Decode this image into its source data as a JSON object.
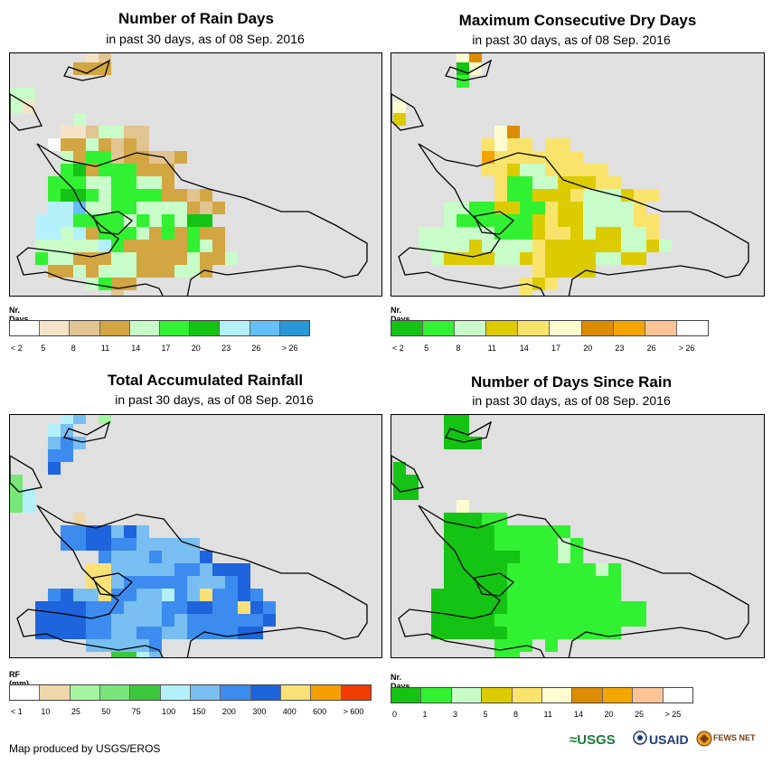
{
  "panels": [
    {
      "id": "rain-days",
      "title": "Number of Rain Days",
      "subtitle": "in past 30 days, as of 08 Sep. 2016",
      "legend_title": "Nr. Days",
      "legend_colors": [
        "#ffffff",
        "#f5e3c8",
        "#e2c493",
        "#d2a642",
        "#c8fcc8",
        "#32f032",
        "#14c314",
        "#b4f0fa",
        "#64befa",
        "#2896d2"
      ],
      "legend_labels": [
        "< 2",
        "5",
        "8",
        "11",
        "14",
        "17",
        "20",
        "23",
        "26",
        "> 26"
      ],
      "grid": [
        "......12......",
        ".....333......",
        "..............",
        "44............",
        "41............",
        ".....4........",
        "....1124422...",
        "...03343232...",
        "....4355233223",
        "....563555333.",
        "...5554455443...",
        "...5665455553323",
        "...77844554444323",
        "..77755554545466",
        "..774735554353533",
        "..444447533333543",
        "..5443334433334334",
        "...3343444333443",
        "......4533.......",
        "........2........",
        "........3........"
      ]
    },
    {
      "id": "max-dry-days",
      "title": "Maximum Consecutive Dry Days",
      "subtitle": "in past 30 days, as of 08 Sep. 2016",
      "legend_title": "Nr. Days",
      "legend_colors": [
        "#14c314",
        "#32f032",
        "#c8fcc8",
        "#dccb00",
        "#f9e36a",
        "#fffcd0",
        "#dc8c00",
        "#f5a500",
        "#fbc396",
        "#ffffff"
      ],
      "legend_labels": [
        "< 2",
        "5",
        "8",
        "11",
        "14",
        "17",
        "20",
        "23",
        "26",
        "> 26"
      ],
      "grid": [
        ".....56.......",
        ".....05.......",
        ".....1........",
        "...............",
        "5................",
        "3................",
        "........56.......",
        ".......4544.44...",
        ".......74444444....",
        ".......4432244444..",
        "........4112233344.",
        "........4113334222344",
        "....2211331143322224",
        "....21111113433222244",
        "..2222221113443233224",
        "..22223222243333332232",
        "...23333223433332233.",
        "...........43333......",
        "..........434.........",
        "..........4...........",
        "..........1..........."
      ]
    },
    {
      "id": "total-rainfall",
      "title": "Total Accumulated Rainfall",
      "subtitle": "in past 30 days, as of 08 Sep. 2016",
      "legend_title": "RF (mm)",
      "legend_colors": [
        "#ffffff",
        "#f0d7aa",
        "#a6f5a0",
        "#78e678",
        "#3cc83c",
        "#b4f0fa",
        "#78bef0",
        "#3c8cf0",
        "#1e64dc",
        "#fae178",
        "#f5a000",
        "#f03c00"
      ],
      "legend_labels": [
        "< 1",
        "10",
        "25",
        "50",
        "75",
        "100",
        "150",
        "200",
        "300",
        "400",
        "600",
        "> 600"
      ],
      "grid": [
        "....56.2.....",
        "...56........",
        "...676.......",
        "...77........",
        "...8.........",
        "3............",
        "35...........",
        "35...........",
        ".....1.........",
        "....7788686............",
        "....77887766666........",
        ".......766676668.......",
        "......9966666776888.....",
        "......9967777766678.....",
        "...78669776657697787.....",
        "..8888777666778877987....",
        "..8888776666767777778....",
        "..888877667766777788....",
        "......666667.........",
        "........4456........",
        "..........5........."
      ]
    },
    {
      "id": "days-since-rain",
      "title": "Number of Days Since Rain",
      "subtitle": "in past 30 days, as of 08 Sep. 2016",
      "legend_title": "Nr. Days",
      "legend_colors": [
        "#14c314",
        "#32f032",
        "#c8fcc8",
        "#dccb00",
        "#f9e36a",
        "#fffcd0",
        "#dc8c00",
        "#f5a500",
        "#fbc396",
        "#ffffff"
      ],
      "legend_labels": [
        "0",
        "1",
        "3",
        "5",
        "8",
        "11",
        "14",
        "20",
        "25",
        "> 25"
      ],
      "grid": [
        "....00.......",
        "....00.......",
        "....000......",
        ".............",
        "0............",
        "00...........",
        "00...........",
        ".....5.......",
        "....00011.........",
        "....0000111111........",
        "....00001111121.......",
        "....00000011121.......",
        "....00000111111121....",
        "....00000111111111....",
        "...000000111111111.....",
        "...00000011111111111...",
        "...00000111111111111...",
        "...000000111111111.....",
        "........111.1.........",
        "........11.........",
        "..........1........."
      ]
    }
  ],
  "footer": "Map produced by USGS/EROS",
  "logos": [
    "USGS",
    "USAID",
    "FEWS NET"
  ],
  "colors": {
    "map_bg": "#e0e0e0",
    "border": "#000000"
  }
}
